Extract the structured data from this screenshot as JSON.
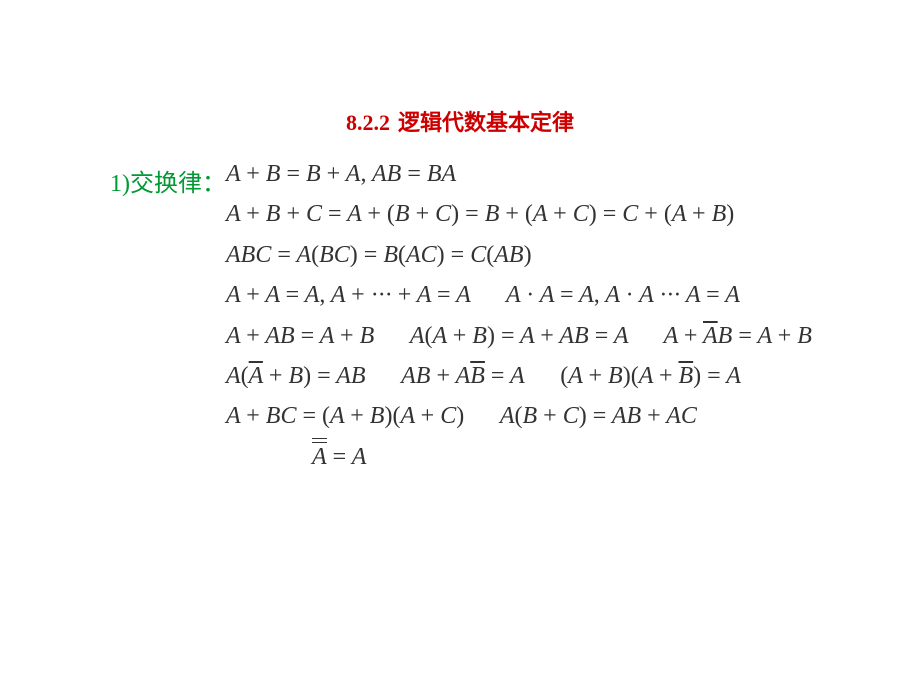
{
  "title": {
    "section": "8.2.2",
    "text": "逻辑代数基本定律"
  },
  "label": "1)交换律：",
  "colors": {
    "title": "#cc0000",
    "label": "#009933",
    "math": "#333333",
    "background": "#ffffff"
  },
  "typography": {
    "title_fontsize": 22,
    "label_fontsize": 24,
    "math_fontsize": 24,
    "math_font": "Times New Roman, italic"
  },
  "lines": {
    "l1": {
      "seg1": "A + B = B + A, AB = BA"
    },
    "l2": {
      "seg1": "A + B + C = A + (B + C) = B + (A + C) = C + (A + B)"
    },
    "l3": {
      "seg1": "ABC = A(BC) = B(AC) = C(AB)"
    },
    "l4": {
      "seg1": "A + A = A, A + ··· + A = A",
      "seg2": "A · A = A, A · A ··· A = A"
    },
    "l5": {
      "seg1": "A + AB = A + B",
      "seg2": "A(A + B) = A + AB = A",
      "seg3_pre": "A + ",
      "seg3_bar": "A",
      "seg3_post": "B = A + B"
    },
    "l6": {
      "seg1_pre": "A(",
      "seg1_bar": "A",
      "seg1_post": " + B) = AB",
      "seg2_pre": "AB + A",
      "seg2_bar": "B",
      "seg2_post": " = A",
      "seg3_pre": "(A + B)(A + ",
      "seg3_bar": "B",
      "seg3_post": ") = A"
    },
    "l7": {
      "seg1": "A + BC = (A + B)(A + C)",
      "seg2": "A(B + C) = AB + AC"
    },
    "l8": {
      "bar": "A",
      "rest": " = A"
    }
  }
}
